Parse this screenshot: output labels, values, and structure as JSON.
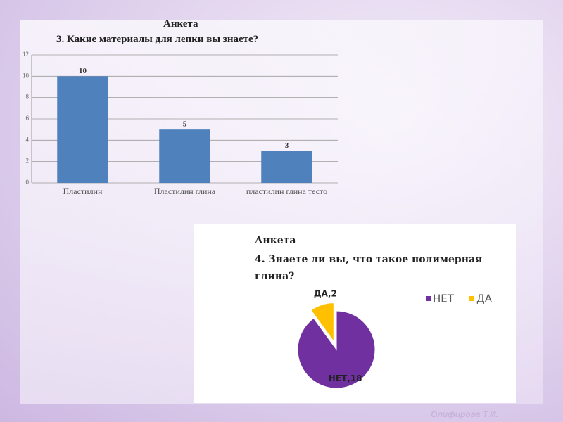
{
  "chart_data": [
    {
      "type": "bar",
      "title": "Анкета",
      "subtitle": "3. Какие материалы для лепки вы знаете?",
      "categories": [
        "Пластилин",
        "Пластилин глина",
        "пластилин глина тесто"
      ],
      "values": [
        10,
        5,
        3
      ],
      "color": "#4f81bd",
      "ylim": [
        0,
        12
      ],
      "yticks": [
        0,
        2,
        4,
        6,
        8,
        10,
        12
      ],
      "grid": true
    },
    {
      "type": "pie",
      "title": "Анкета",
      "subtitle": "4. Знаете ли вы, что такое полимерная глина?",
      "categories": [
        "НЕТ",
        "ДА"
      ],
      "values": [
        18,
        2
      ],
      "value_labels": [
        "НЕТ,18",
        "ДА,2"
      ],
      "colors": [
        "#7030a0",
        "#ffc000"
      ],
      "legend": "top-right"
    }
  ],
  "footer": "Олифирова Т.И."
}
